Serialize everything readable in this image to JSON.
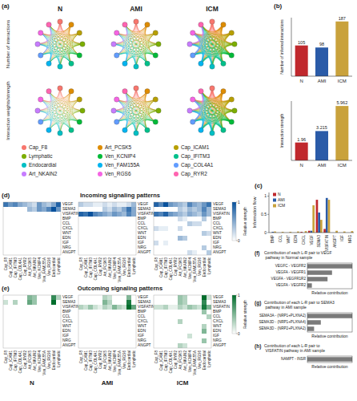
{
  "chart_data": [
    {
      "panel": "(a)",
      "type": "network",
      "columns": [
        "N",
        "AMI",
        "ICM"
      ],
      "rows": [
        "Number of interactions",
        "Interaction weights/strength"
      ],
      "nodes": [
        "Cap_F8",
        "Art_PCSK5",
        "Cap_ICAM1",
        "Lymphatic",
        "Ven_KCNIP4",
        "Cap_IFITM3",
        "Endocardial",
        "Ven_FAM155A",
        "Cap_COL4A1",
        "Art_NKAIN2",
        "Ven_RGS6",
        "Cap_RYR2"
      ],
      "colors": [
        "#F8766D",
        "#DE8C00",
        "#B79F00",
        "#7CAE00",
        "#00BA38",
        "#00C08B",
        "#00BFC4",
        "#00B4F0",
        "#619CFF",
        "#C77CFF",
        "#F564E3",
        "#FF64B0"
      ]
    },
    {
      "panel": "(b)",
      "type": "bar",
      "y_label": "Number of inferred interactions",
      "categories": [
        "N",
        "AMI",
        "ICM"
      ],
      "values": [
        105,
        98,
        187
      ],
      "colors": [
        "#c0282d",
        "#2a5ba8",
        "#c9a23c"
      ],
      "ylim": [
        0,
        200
      ],
      "data_labels": true,
      "tick_labels": "x"
    },
    {
      "type": "bar",
      "y_label": "Interaction strength",
      "categories": [
        "N",
        "AMI",
        "ICM"
      ],
      "values": [
        1.96,
        3.215,
        5.962
      ],
      "colors": [
        "#c0282d",
        "#2a5ba8",
        "#c9a23c"
      ],
      "ylim": [
        0,
        6.5
      ],
      "data_labels": true,
      "tick_labels": "x"
    },
    {
      "panel": "(c)",
      "type": "bar",
      "y_label": "Information flow",
      "categories": [
        "BMP",
        "CCL",
        "WNT",
        "EDN",
        "CXCL",
        "VEGF",
        "SEMA3",
        "VISFATIN",
        "ANGPT",
        "IGF",
        "NRG"
      ],
      "series": [
        {
          "name": "N",
          "color": "#c0282d",
          "values": [
            0,
            0,
            0,
            0,
            0.02,
            0.05,
            0.9,
            0.1,
            0,
            0,
            0
          ]
        },
        {
          "name": "AMI",
          "color": "#2a5ba8",
          "values": [
            0.02,
            0,
            0,
            0,
            0,
            0.05,
            0.55,
            0.95,
            0,
            0,
            0
          ]
        },
        {
          "name": "ICM",
          "color": "#c9a23c",
          "values": [
            0.03,
            0.02,
            0.02,
            0.03,
            0.04,
            0.75,
            0.35,
            0.9,
            0.05,
            0.03,
            0.04
          ]
        }
      ],
      "ylim": [
        0,
        1.1
      ],
      "yticks": [
        0,
        0.5,
        1
      ],
      "legend": "top-left",
      "grid": false
    },
    {
      "panel": "(d)",
      "type": "heatmap",
      "title": "Incoming signaling patterns",
      "x": [
        "Cap_F8",
        "Cap_ICAM1",
        "Cap_IFITM3",
        "Cap_COL4A1",
        "Cap_RYR2",
        "Art_PCSK5",
        "Art_NKAIN2",
        "Ven_KCNIP4",
        "Ven_FAM155A",
        "Ven_RGS6",
        "Endocardial",
        "Lymphatic"
      ],
      "y": [
        "VEGF",
        "SEMA3",
        "VISFATIN",
        "BMP",
        "CCL",
        "CXCL",
        "WNT",
        "EDN",
        "IGF",
        "NRG",
        "ANGPT"
      ],
      "cells": [
        [
          [
            0.8,
            0.6,
            0.7,
            0.5,
            0.4,
            0.3,
            0.2,
            0.6,
            0.4,
            0.3,
            0.5,
            0.9
          ],
          [
            0,
            0,
            0,
            0,
            0,
            0.4,
            0.3,
            0.6,
            0.5,
            0.7,
            1,
            0.6
          ],
          [
            0,
            0,
            0,
            0,
            0,
            0,
            0,
            0,
            0,
            0,
            0,
            0
          ],
          [
            0,
            0,
            0,
            0,
            0,
            0,
            0,
            0,
            0,
            0,
            0,
            0
          ],
          [
            0,
            0,
            0,
            0,
            0,
            0,
            0,
            0,
            0,
            0,
            0,
            0
          ],
          [
            0,
            0,
            0,
            0,
            0,
            0,
            0,
            0,
            0,
            0,
            0,
            0
          ],
          [
            0,
            0,
            0,
            0,
            0,
            0,
            0,
            0,
            0,
            0,
            0,
            0
          ],
          [
            0,
            0,
            0,
            0,
            0,
            0,
            0,
            0,
            0,
            0,
            0,
            0
          ],
          [
            0,
            0,
            0,
            0,
            0,
            0,
            0,
            0,
            0,
            0,
            0,
            0
          ],
          [
            0,
            0,
            0,
            0,
            0,
            0,
            0,
            0,
            0,
            0,
            0,
            0
          ],
          [
            0,
            0,
            0,
            0,
            0,
            0,
            0,
            0,
            0,
            0,
            0,
            0
          ]
        ],
        [
          [
            0.3,
            0.2,
            0.2,
            0.1,
            0.1,
            0.2,
            0.1,
            0.2,
            0.1,
            0.1,
            0.2,
            0.4
          ],
          [
            0,
            0,
            0,
            0,
            0,
            0.3,
            0.2,
            0.4,
            0.3,
            0.5,
            0.8,
            0.5
          ],
          [
            0.9,
            0.8,
            1,
            0.7,
            0.6,
            0.5,
            0.4,
            0.6,
            0.5,
            0.4,
            0.7,
            0.5
          ],
          [
            0,
            0,
            0,
            0,
            0,
            0,
            0,
            0,
            0,
            0,
            0,
            0
          ],
          [
            0,
            0,
            0,
            0,
            0,
            0,
            0,
            0,
            0,
            0,
            0,
            0
          ],
          [
            0,
            0,
            0,
            0,
            0,
            0,
            0,
            0,
            0,
            0,
            0,
            0
          ],
          [
            0,
            0,
            0,
            0,
            0,
            0,
            0,
            0,
            0,
            0,
            0,
            0
          ],
          [
            0,
            0,
            0,
            0,
            0,
            0,
            0,
            0,
            0,
            0,
            0,
            0
          ],
          [
            0,
            0,
            0,
            0,
            0,
            0,
            0,
            0,
            0,
            0,
            0,
            0
          ],
          [
            0,
            0,
            0,
            0,
            0,
            0,
            0,
            0,
            0,
            0,
            0,
            0
          ],
          [
            0,
            0,
            0,
            0,
            0,
            0,
            0,
            0,
            0,
            0,
            0,
            0
          ]
        ],
        [
          [
            0.9,
            0.7,
            1,
            0.6,
            0.5,
            0.4,
            0.3,
            0.7,
            0.5,
            0.4,
            0.6,
            0.8
          ],
          [
            0,
            0,
            0,
            0,
            0,
            0.3,
            0.2,
            0.4,
            0.3,
            0.4,
            0.7,
            0.4
          ],
          [
            0.8,
            0.7,
            0.9,
            0.6,
            0.5,
            0.4,
            0.3,
            0.5,
            0.4,
            0.3,
            0.6,
            0.4
          ],
          [
            0,
            0,
            0,
            0,
            0,
            0.2,
            0.1,
            0,
            0,
            0,
            0.3,
            0
          ],
          [
            0,
            0,
            0,
            0,
            0,
            0,
            0,
            0.3,
            0.2,
            0.2,
            0,
            0
          ],
          [
            0.2,
            0.1,
            0.1,
            0,
            0,
            0.2,
            0,
            0,
            0,
            0,
            0,
            0
          ],
          [
            0,
            0,
            0,
            0,
            0,
            0,
            0,
            0,
            0,
            0,
            0.3,
            0.2
          ],
          [
            0,
            0,
            0,
            0,
            0,
            0.4,
            0.3,
            0,
            0,
            0,
            0,
            0
          ],
          [
            0.2,
            0,
            0.1,
            0,
            0,
            0,
            0,
            0,
            0,
            0,
            0,
            0
          ],
          [
            0,
            0,
            0,
            0,
            0,
            0,
            0,
            0,
            0,
            0,
            0.3,
            0
          ],
          [
            0,
            0,
            0,
            0,
            0,
            0,
            0,
            0.2,
            0.1,
            0,
            0,
            0.3
          ]
        ]
      ],
      "color": "#08519c",
      "color_range": [
        0,
        1
      ],
      "color_ticks": [
        0,
        1
      ],
      "colorbar_label": "Relative strength"
    },
    {
      "panel": "(e)",
      "type": "heatmap",
      "title": "Outcoming signaling patterns",
      "panels": [
        "N",
        "AMI",
        "ICM"
      ],
      "x": [
        "Cap_F8",
        "Cap_ICAM1",
        "Cap_IFITM3",
        "Cap_COL4A1",
        "Cap_RYR2",
        "Art_PCSK5",
        "Art_NKAIN2",
        "Ven_KCNIP4",
        "Ven_FAM155A",
        "Ven_RGS6",
        "Endocardial",
        "Lymphatic"
      ],
      "y": [
        "VEGF",
        "SEMA3",
        "VISFATIN",
        "BMP",
        "CCL",
        "CXCL",
        "WNT",
        "EDN",
        "IGF",
        "NRG",
        "ANGPT"
      ],
      "cells": [
        [
          [
            0,
            0,
            0,
            0,
            0,
            0.5,
            0.4,
            0,
            0,
            0,
            0.8,
            0.3
          ],
          [
            0.2,
            0,
            0.3,
            0,
            0,
            0.6,
            0.4,
            0,
            0,
            0,
            1,
            0
          ],
          [
            0,
            0,
            0,
            0,
            0,
            0,
            0,
            0,
            0,
            0,
            0,
            0
          ],
          [
            0,
            0,
            0,
            0,
            0,
            0,
            0,
            0,
            0,
            0,
            0,
            0
          ],
          [
            0,
            0,
            0,
            0,
            0,
            0,
            0,
            0,
            0,
            0,
            0,
            0
          ],
          [
            0,
            0,
            0,
            0,
            0,
            0,
            0,
            0,
            0,
            0,
            0,
            0
          ],
          [
            0,
            0,
            0,
            0,
            0,
            0,
            0,
            0,
            0,
            0,
            0,
            0
          ],
          [
            0,
            0,
            0,
            0,
            0,
            0,
            0,
            0,
            0,
            0,
            0,
            0
          ],
          [
            0,
            0,
            0,
            0,
            0,
            0,
            0,
            0,
            0,
            0,
            0,
            0
          ],
          [
            0,
            0,
            0,
            0,
            0,
            0,
            0,
            0,
            0,
            0,
            0,
            0
          ],
          [
            0,
            0,
            0,
            0,
            0,
            0,
            0,
            0,
            0,
            0,
            0,
            0
          ]
        ],
        [
          [
            0,
            0,
            0,
            0,
            0,
            0.3,
            0.2,
            0,
            0,
            0,
            0.5,
            0
          ],
          [
            0,
            0,
            0,
            0,
            0,
            0.5,
            0.3,
            0,
            0,
            0,
            0.9,
            0
          ],
          [
            0.3,
            0.2,
            0.4,
            0.2,
            0.1,
            0.3,
            0.2,
            0.5,
            0.3,
            0.2,
            1,
            0.6
          ],
          [
            0,
            0,
            0,
            0,
            0,
            0,
            0,
            0,
            0,
            0,
            0,
            0
          ],
          [
            0,
            0,
            0,
            0,
            0,
            0,
            0,
            0,
            0,
            0,
            0,
            0
          ],
          [
            0,
            0,
            0,
            0,
            0,
            0,
            0,
            0,
            0,
            0,
            0,
            0
          ],
          [
            0,
            0,
            0,
            0,
            0,
            0,
            0,
            0,
            0,
            0,
            0,
            0
          ],
          [
            0,
            0,
            0,
            0,
            0,
            0,
            0,
            0,
            0,
            0,
            0,
            0
          ],
          [
            0,
            0,
            0,
            0,
            0,
            0,
            0,
            0,
            0,
            0,
            0,
            0
          ],
          [
            0,
            0,
            0,
            0,
            0,
            0,
            0,
            0,
            0,
            0,
            0,
            0
          ],
          [
            0,
            0,
            0,
            0,
            0,
            0,
            0,
            0,
            0,
            0,
            0,
            0
          ]
        ],
        [
          [
            0,
            0,
            0,
            0,
            0,
            0.4,
            0.3,
            0,
            0,
            0,
            1,
            0.2
          ],
          [
            0,
            0,
            0,
            0,
            0,
            0.4,
            0.3,
            0,
            0,
            0,
            0.8,
            0
          ],
          [
            0.2,
            0.2,
            0.3,
            0.1,
            0.1,
            0.3,
            0.2,
            0.4,
            0.3,
            0.2,
            0.9,
            0.5
          ],
          [
            0,
            0,
            0,
            0,
            0,
            0,
            0,
            0,
            0,
            0,
            0.4,
            0
          ],
          [
            0,
            0,
            0,
            0,
            0,
            0,
            0,
            0,
            0,
            0,
            0,
            0.3
          ],
          [
            0,
            0,
            0,
            0,
            0,
            0.3,
            0,
            0,
            0,
            0,
            0,
            0
          ],
          [
            0,
            0,
            0,
            0,
            0,
            0,
            0,
            0,
            0,
            0,
            0.3,
            0
          ],
          [
            0,
            0,
            0,
            0,
            0,
            0,
            0,
            0,
            0,
            0,
            0.5,
            0
          ],
          [
            0,
            0,
            0,
            0,
            0,
            0,
            0,
            0.2,
            0,
            0,
            0,
            0
          ],
          [
            0,
            0,
            0,
            0,
            0,
            0,
            0,
            0,
            0,
            0,
            0.4,
            0
          ],
          [
            0,
            0,
            0,
            0,
            0,
            0.3,
            0.2,
            0,
            0,
            0,
            0,
            0
          ]
        ]
      ],
      "color": "#006d2c",
      "color_range": [
        0,
        1
      ],
      "color_ticks": [
        0,
        1
      ],
      "colorbar_label": "Relative strength"
    },
    {
      "panel": "(f)",
      "type": "bar",
      "orientation": "horizontal",
      "title": "Contribution of each L-R pair to VEGF pathway in Normal sample",
      "categories": [
        "VEGFC - VEGFR2",
        "VEGFA - VEGFR1",
        "VEGFA - VEGFR1R2",
        "VEGFA - VEGFR2"
      ],
      "values": [
        1.0,
        0.55,
        0.45,
        0.1
      ],
      "x_label": "Relative contribution",
      "xlim": [
        0,
        1
      ],
      "tick_labels": "y",
      "color": "#7a7a7a"
    },
    {
      "panel": "(g)",
      "type": "bar",
      "orientation": "horizontal",
      "title": "Contribution of each L-R pair to SEMA3 pathway in AMI sample",
      "categories": [
        "SEMA3A - (NRP1+PLXNA2)",
        "SEMA3D - (NRP1+PLXNA4)",
        "SEMA3D - (NRP2+PLXNA2)"
      ],
      "values": [
        1.0,
        0.3,
        0.15
      ],
      "x_label": "Relative contribution",
      "xlim": [
        0,
        1
      ],
      "tick_labels": "y",
      "color": "#7a7a7a"
    },
    {
      "panel": "(h)",
      "type": "bar",
      "orientation": "horizontal",
      "title": "Contribution of each L-R pair to VISFATIN pathway in AMI sample",
      "categories": [
        "NAMPT - INSR"
      ],
      "values": [
        1.0
      ],
      "x_label": "Relative contribution",
      "xlim": [
        0,
        1
      ],
      "tick_labels": "y",
      "color": "#7a7a7a"
    }
  ]
}
